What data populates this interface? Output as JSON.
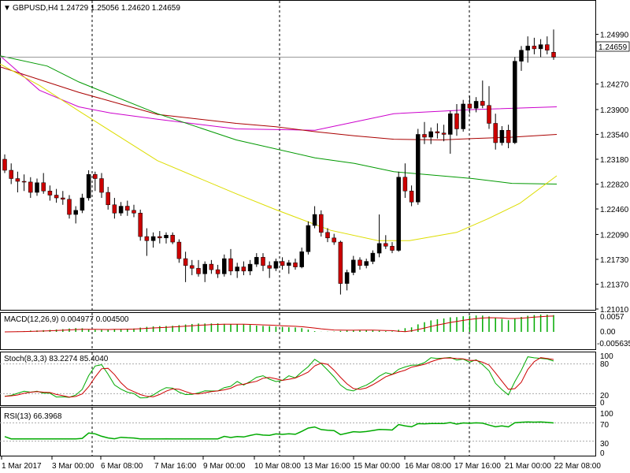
{
  "header": {
    "symbol": "GBPUSD,H4",
    "ohlc": "1.24729 1.25056 1.24620 1.24659"
  },
  "indicators": {
    "macd": {
      "label": "MACD(12,26,9) 0.004977 0.004500",
      "top": "0.0057",
      "zero": "0.00",
      "bottom": "-0.005635"
    },
    "stoch": {
      "label": "Stoch(8,3,3) 83.2274 85.4040",
      "top": "100",
      "upper": "80",
      "lower": "20",
      "bottom": "0"
    },
    "rsi": {
      "label": "RSI(13) 66.3968",
      "top": "100",
      "upper": "70",
      "lower": "30",
      "bottom": "0"
    }
  },
  "colors": {
    "bull": "#000000",
    "bear": "#cc0000",
    "ma_fast": "#009900",
    "ma_mid": "#aa0000",
    "ma_slow": "#dddd00",
    "ma_long": "#cc00cc",
    "macd_hist": "#00aa00",
    "macd_signal": "#cc0000",
    "stoch_main": "#00aa00",
    "stoch_signal": "#cc0000",
    "rsi": "#00aa00",
    "price_line": "#999999"
  },
  "chart_data": {
    "type": "candlestick",
    "symbol": "GBPUSD",
    "timeframe": "H4",
    "current_price": 1.24659,
    "current_price_label": "1.24659",
    "ylim": [
      1.2101,
      1.2535
    ],
    "y_ticks": [
      "1.24990",
      "1.24270",
      "1.23900",
      "1.23540",
      "1.23180",
      "1.22820",
      "1.22460",
      "1.22090",
      "1.21730",
      "1.21370",
      "1.21010"
    ],
    "x_ticks": [
      "1 Mar 2017",
      "3 Mar 00:00",
      "6 Mar 08:00",
      "7 Mar 16:00",
      "9 Mar 00:00",
      "10 Mar 08:00",
      "13 Mar 16:00",
      "15 Mar 00:00",
      "16 Mar 08:00",
      "17 Mar 16:00",
      "21 Mar 00:00",
      "22 Mar 08:00"
    ],
    "period_separators": [
      "3 Mar 00:00",
      "10 Mar 08:00",
      "17 Mar 16:00"
    ],
    "candles": [
      [
        1.2318,
        1.2325,
        1.2298,
        1.2302
      ],
      [
        1.2302,
        1.2312,
        1.2282,
        1.229
      ],
      [
        1.229,
        1.23,
        1.227,
        1.2286
      ],
      [
        1.2286,
        1.2296,
        1.2272,
        1.2285
      ],
      [
        1.2285,
        1.2292,
        1.2262,
        1.227
      ],
      [
        1.227,
        1.229,
        1.2265,
        1.2284
      ],
      [
        1.2284,
        1.2298,
        1.2268,
        1.2272
      ],
      [
        1.2272,
        1.228,
        1.2258,
        1.2266
      ],
      [
        1.2266,
        1.2275,
        1.2255,
        1.2262
      ],
      [
        1.2262,
        1.2272,
        1.2252,
        1.226
      ],
      [
        1.226,
        1.2266,
        1.2232,
        1.2238
      ],
      [
        1.2238,
        1.225,
        1.2225,
        1.2244
      ],
      [
        1.2244,
        1.2268,
        1.224,
        1.2262
      ],
      [
        1.2262,
        1.2302,
        1.2258,
        1.2296
      ],
      [
        1.2296,
        1.23,
        1.2272,
        1.229
      ],
      [
        1.229,
        1.2298,
        1.2262,
        1.227
      ],
      [
        1.227,
        1.2278,
        1.2245,
        1.2252
      ],
      [
        1.2252,
        1.2262,
        1.2232,
        1.224
      ],
      [
        1.224,
        1.2256,
        1.2236,
        1.225
      ],
      [
        1.225,
        1.2258,
        1.2236,
        1.2244
      ],
      [
        1.2244,
        1.2252,
        1.2234,
        1.224
      ],
      [
        1.224,
        1.2245,
        1.22,
        1.2206
      ],
      [
        1.2206,
        1.2218,
        1.2178,
        1.22
      ],
      [
        1.22,
        1.2212,
        1.219,
        1.2206
      ],
      [
        1.2206,
        1.2214,
        1.2196,
        1.2204
      ],
      [
        1.2204,
        1.2212,
        1.2196,
        1.2208
      ],
      [
        1.2208,
        1.2212,
        1.2195,
        1.2198
      ],
      [
        1.2198,
        1.2202,
        1.2168,
        1.2174
      ],
      [
        1.2174,
        1.2184,
        1.214,
        1.2164
      ],
      [
        1.2164,
        1.2172,
        1.215,
        1.216
      ],
      [
        1.216,
        1.2172,
        1.2148,
        1.2152
      ],
      [
        1.2152,
        1.217,
        1.214,
        1.2166
      ],
      [
        1.2166,
        1.2172,
        1.2152,
        1.2158
      ],
      [
        1.2158,
        1.2165,
        1.2146,
        1.2152
      ],
      [
        1.2152,
        1.218,
        1.2148,
        1.2174
      ],
      [
        1.2174,
        1.2188,
        1.215,
        1.2156
      ],
      [
        1.2156,
        1.2168,
        1.2146,
        1.2162
      ],
      [
        1.2162,
        1.217,
        1.215,
        1.2156
      ],
      [
        1.2156,
        1.2172,
        1.215,
        1.2166
      ],
      [
        1.2166,
        1.2182,
        1.2162,
        1.2176
      ],
      [
        1.2176,
        1.2182,
        1.2156,
        1.2164
      ],
      [
        1.2164,
        1.217,
        1.2146,
        1.216
      ],
      [
        1.216,
        1.2174,
        1.2156,
        1.217
      ],
      [
        1.217,
        1.2176,
        1.2158,
        1.2164
      ],
      [
        1.2164,
        1.2172,
        1.2152,
        1.2168
      ],
      [
        1.2168,
        1.2174,
        1.2158,
        1.2162
      ],
      [
        1.2162,
        1.219,
        1.216,
        1.2184
      ],
      [
        1.2184,
        1.2228,
        1.218,
        1.2222
      ],
      [
        1.2222,
        1.225,
        1.2218,
        1.2238
      ],
      [
        1.2238,
        1.2244,
        1.2206,
        1.2212
      ],
      [
        1.2212,
        1.2218,
        1.2198,
        1.2204
      ],
      [
        1.2204,
        1.221,
        1.2194,
        1.2198
      ],
      [
        1.2198,
        1.22,
        1.2122,
        1.2138
      ],
      [
        1.2138,
        1.2158,
        1.2128,
        1.2154
      ],
      [
        1.2154,
        1.2178,
        1.215,
        1.2172
      ],
      [
        1.2172,
        1.2176,
        1.2158,
        1.2164
      ],
      [
        1.2164,
        1.2174,
        1.216,
        1.217
      ],
      [
        1.217,
        1.2186,
        1.2166,
        1.2182
      ],
      [
        1.2182,
        1.2238,
        1.2176,
        1.2196
      ],
      [
        1.2196,
        1.2208,
        1.2188,
        1.2192
      ],
      [
        1.2192,
        1.2198,
        1.2182,
        1.2186
      ],
      [
        1.2186,
        1.23,
        1.2184,
        1.2292
      ],
      [
        1.2292,
        1.2312,
        1.2262,
        1.2272
      ],
      [
        1.2272,
        1.228,
        1.225,
        1.2256
      ],
      [
        1.2256,
        1.2362,
        1.2252,
        1.2354
      ],
      [
        1.2354,
        1.2372,
        1.234,
        1.235
      ],
      [
        1.235,
        1.2364,
        1.234,
        1.2358
      ],
      [
        1.2358,
        1.237,
        1.2348,
        1.2356
      ],
      [
        1.2356,
        1.2368,
        1.2344,
        1.2354
      ],
      [
        1.2354,
        1.2388,
        1.2326,
        1.2384
      ],
      [
        1.2384,
        1.2398,
        1.2352,
        1.2362
      ],
      [
        1.2362,
        1.2404,
        1.2358,
        1.2398
      ],
      [
        1.2398,
        1.241,
        1.2384,
        1.2392
      ],
      [
        1.2392,
        1.2408,
        1.2386,
        1.2402
      ],
      [
        1.2402,
        1.2432,
        1.2392,
        1.2396
      ],
      [
        1.2396,
        1.2424,
        1.2362,
        1.237
      ],
      [
        1.237,
        1.2384,
        1.2332,
        1.2342
      ],
      [
        1.2342,
        1.2366,
        1.2338,
        1.236
      ],
      [
        1.236,
        1.2368,
        1.2334,
        1.2342
      ],
      [
        1.2342,
        1.2466,
        1.234,
        1.246
      ],
      [
        1.246,
        1.2482,
        1.2446,
        1.2476
      ],
      [
        1.2476,
        1.2496,
        1.2458,
        1.2482
      ],
      [
        1.2482,
        1.2494,
        1.247,
        1.2478
      ],
      [
        1.2478,
        1.2492,
        1.2466,
        1.2484
      ],
      [
        1.2484,
        1.2496,
        1.247,
        1.2476
      ],
      [
        1.2473,
        1.2506,
        1.2462,
        1.2466
      ]
    ],
    "moving_averages": [
      {
        "name": "ma_long",
        "values": [
          [
            0,
            1.2468
          ],
          [
            50,
            1.2418
          ],
          [
            100,
            1.2394
          ],
          [
            140,
            1.2385
          ],
          [
            200,
            1.2376
          ],
          [
            300,
            1.2362
          ],
          [
            400,
            1.236
          ],
          [
            500,
            1.2384
          ],
          [
            600,
            1.239
          ],
          [
            707,
            1.2394
          ]
        ]
      },
      {
        "name": "ma_mid",
        "values": [
          [
            0,
            1.2452
          ],
          [
            100,
            1.2415
          ],
          [
            200,
            1.2383
          ],
          [
            300,
            1.237
          ],
          [
            350,
            1.2365
          ],
          [
            400,
            1.2358
          ],
          [
            450,
            1.2352
          ],
          [
            500,
            1.2347
          ],
          [
            560,
            1.2346
          ],
          [
            600,
            1.2348
          ],
          [
            650,
            1.235
          ],
          [
            707,
            1.2354
          ]
        ]
      },
      {
        "name": "ma_fast",
        "values": [
          [
            0,
            1.2468
          ],
          [
            60,
            1.2453
          ],
          [
            100,
            1.243
          ],
          [
            200,
            1.2384
          ],
          [
            300,
            1.2346
          ],
          [
            400,
            1.232
          ],
          [
            450,
            1.2312
          ],
          [
            500,
            1.23
          ],
          [
            600,
            1.229
          ],
          [
            650,
            1.2283
          ],
          [
            707,
            1.2282
          ]
        ]
      },
      {
        "name": "ma_slow",
        "values": [
          [
            0,
            1.2456
          ],
          [
            50,
            1.2425
          ],
          [
            100,
            1.2388
          ],
          [
            200,
            1.2316
          ],
          [
            300,
            1.2268
          ],
          [
            350,
            1.2245
          ],
          [
            420,
            1.2215
          ],
          [
            480,
            1.22
          ],
          [
            520,
            1.22
          ],
          [
            580,
            1.2212
          ],
          [
            620,
            1.2232
          ],
          [
            660,
            1.2254
          ],
          [
            707,
            1.2294
          ]
        ]
      }
    ],
    "macd": {
      "ylim": [
        -0.005635,
        0.0057
      ],
      "histogram": "macd_hist",
      "signal": "macd_signal"
    },
    "stoch": {
      "ylim": [
        0,
        100
      ],
      "levels": [
        80,
        20
      ]
    },
    "rsi": {
      "ylim": [
        0,
        100
      ],
      "levels": [
        70,
        30
      ]
    }
  }
}
